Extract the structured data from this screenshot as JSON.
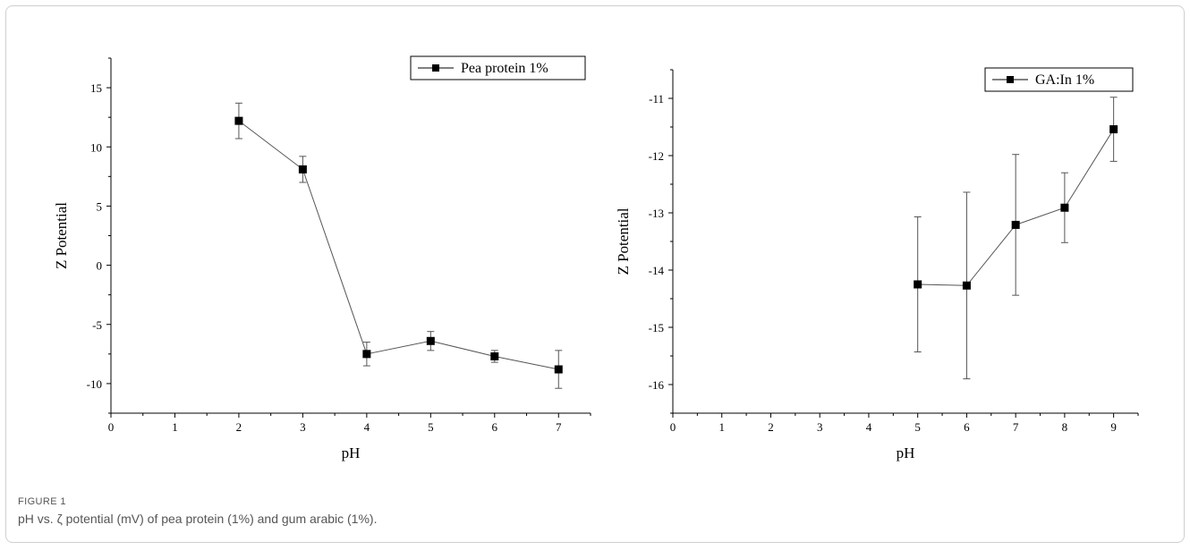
{
  "figure": {
    "label": "FIGURE 1",
    "caption": "pH vs. ζ potential (mV) of pea protein (1%) and gum arabic (1%)."
  },
  "chart_data": [
    {
      "type": "line",
      "xlabel": "pH",
      "ylabel": "Z Potential",
      "xlim": [
        0,
        7.5
      ],
      "ylim": [
        -12.5,
        17.5
      ],
      "xticks": [
        0,
        1,
        2,
        3,
        4,
        5,
        6,
        7
      ],
      "yticks": [
        -10,
        -5,
        0,
        5,
        10,
        15
      ],
      "grid": false,
      "legend_position": "top-right",
      "series": [
        {
          "name": "Pea protein 1%",
          "marker": "square",
          "x": [
            2,
            3,
            4,
            5,
            6,
            7
          ],
          "y": [
            12.2,
            8.1,
            -7.5,
            -6.4,
            -7.7,
            -8.8
          ],
          "yerr": [
            1.5,
            1.1,
            1.0,
            0.8,
            0.5,
            1.6
          ]
        }
      ]
    },
    {
      "type": "line",
      "xlabel": "pH",
      "ylabel": "Z Potential",
      "xlim": [
        0,
        9.5
      ],
      "ylim": [
        -16.5,
        -10.5
      ],
      "xticks": [
        0,
        1,
        2,
        3,
        4,
        5,
        6,
        7,
        8,
        9
      ],
      "yticks": [
        -16,
        -15,
        -14,
        -13,
        -12,
        -11
      ],
      "grid": false,
      "legend_position": "top-right",
      "series": [
        {
          "name": "GA:In 1%",
          "marker": "square",
          "x": [
            5,
            6,
            7,
            8,
            9
          ],
          "y": [
            -14.25,
            -14.27,
            -13.21,
            -12.91,
            -11.54
          ],
          "yerr": [
            1.18,
            1.63,
            1.23,
            0.61,
            0.56
          ]
        }
      ]
    }
  ]
}
